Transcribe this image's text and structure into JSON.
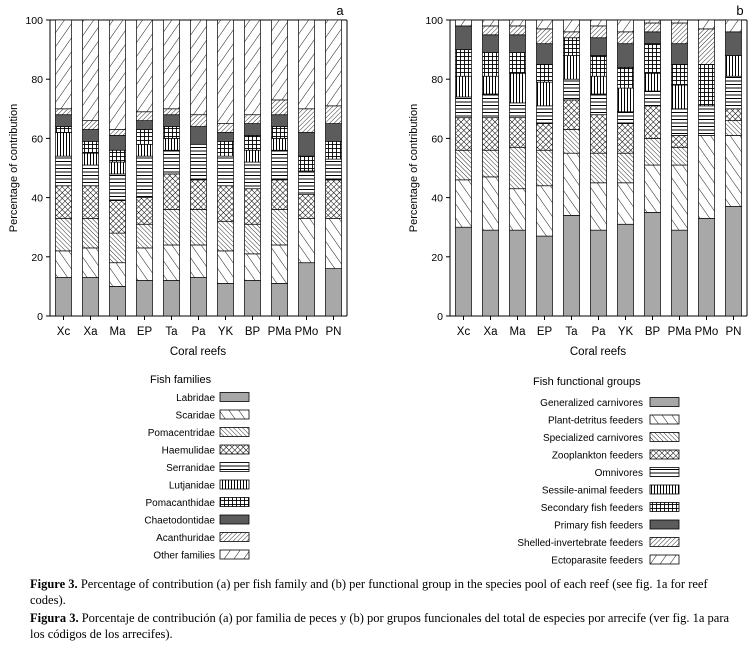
{
  "patterns": [
    {
      "name": "solid-gray",
      "color": "#a8a8a8"
    },
    {
      "name": "sparse-diagonal",
      "color": "#000"
    },
    {
      "name": "dense-diagonal-left",
      "color": "#000"
    },
    {
      "name": "crosshatch",
      "color": "#000"
    },
    {
      "name": "horizontal-lines",
      "color": "#000"
    },
    {
      "name": "vertical-lines",
      "color": "#000"
    },
    {
      "name": "grid",
      "color": "#000"
    },
    {
      "name": "solid-dark",
      "color": "#5c5c5c"
    },
    {
      "name": "dense-diagonal-right",
      "color": "#000"
    },
    {
      "name": "sparse-diagonal-left",
      "color": "#000"
    }
  ],
  "chart_data": [
    {
      "type": "bar",
      "stacked": true,
      "panel_label": "a",
      "title": "",
      "xlabel": "Coral reefs",
      "ylabel": "Percentage of contribution",
      "ylim": [
        0,
        100
      ],
      "yticks": [
        "0",
        "20",
        "40",
        "60",
        "80",
        "100"
      ],
      "categories": [
        "Xc",
        "Xa",
        "Ma",
        "EP",
        "Ta",
        "Pa",
        "YK",
        "BP",
        "PMa",
        "PMo",
        "PN"
      ],
      "legend_title": "Fish families",
      "series": [
        {
          "name": "Labridae",
          "values": [
            13,
            13,
            10,
            12,
            12,
            13,
            11,
            12,
            11,
            18,
            16
          ]
        },
        {
          "name": "Scaridae",
          "values": [
            9,
            10,
            8,
            11,
            12,
            11,
            11,
            9,
            13,
            15,
            17
          ]
        },
        {
          "name": "Pomacentridae",
          "values": [
            11,
            10,
            10,
            8,
            12,
            12,
            10,
            10,
            12,
            0,
            0
          ]
        },
        {
          "name": "Haemulidae",
          "values": [
            11,
            11,
            11,
            9,
            12,
            10,
            12,
            12,
            10,
            8,
            13
          ]
        },
        {
          "name": "Serranidae",
          "values": [
            10,
            7,
            9,
            14,
            8,
            12,
            10,
            9,
            10,
            8,
            7
          ]
        },
        {
          "name": "Lutjanidae",
          "values": [
            8,
            4,
            4,
            4,
            4,
            0,
            0,
            4,
            4,
            0,
            0
          ]
        },
        {
          "name": "Pomacanthidae",
          "values": [
            2,
            4,
            4,
            5,
            4,
            0,
            5,
            5,
            4,
            5,
            6
          ]
        },
        {
          "name": "Chaetodontidae",
          "values": [
            4,
            4,
            5,
            3,
            4,
            6,
            3,
            4,
            4,
            8,
            6
          ]
        },
        {
          "name": "Acanthuridae",
          "values": [
            2,
            3,
            2,
            3,
            2,
            4,
            3,
            3,
            5,
            8,
            6
          ]
        },
        {
          "name": "Other families",
          "values": [
            30,
            34,
            37,
            31,
            30,
            32,
            35,
            32,
            27,
            30,
            29
          ]
        }
      ]
    },
    {
      "type": "bar",
      "stacked": true,
      "panel_label": "b",
      "title": "",
      "xlabel": "Coral reefs",
      "ylabel": "Percentage of contribution",
      "ylim": [
        0,
        100
      ],
      "yticks": [
        "0",
        "20",
        "40",
        "60",
        "80",
        "100"
      ],
      "categories": [
        "Xc",
        "Xa",
        "Ma",
        "EP",
        "Ta",
        "Pa",
        "YK",
        "BP",
        "PMa",
        "PMo",
        "PN"
      ],
      "legend_title": "Fish functional groups",
      "series": [
        {
          "name": "Generalized carnivores",
          "values": [
            30,
            29,
            29,
            27,
            34,
            29,
            31,
            35,
            29,
            33,
            37
          ]
        },
        {
          "name": "Plant-detritus feeders",
          "values": [
            16,
            18,
            14,
            17,
            21,
            16,
            14,
            16,
            22,
            28,
            24
          ]
        },
        {
          "name": "Specialized carnivores",
          "values": [
            10,
            9,
            14,
            12,
            8,
            10,
            10,
            9,
            6,
            0,
            5
          ]
        },
        {
          "name": "Zooplankton feeders",
          "values": [
            11,
            11,
            10,
            9,
            10,
            13,
            10,
            11,
            4,
            0,
            4
          ]
        },
        {
          "name": "Omnivores",
          "values": [
            7,
            8,
            5,
            6,
            7,
            7,
            4,
            5,
            9,
            10,
            11
          ]
        },
        {
          "name": "Sessile-animal feeders",
          "values": [
            7,
            6,
            10,
            8,
            8,
            6,
            8,
            6,
            8,
            0,
            7
          ]
        },
        {
          "name": "Secondary fish feeders",
          "values": [
            9,
            8,
            7,
            6,
            6,
            7,
            7,
            10,
            7,
            14,
            0
          ]
        },
        {
          "name": "Primary fish feeders",
          "values": [
            8,
            6,
            6,
            7,
            0,
            6,
            8,
            4,
            7,
            0,
            8
          ]
        },
        {
          "name": "Shelled-invertebrate feeders",
          "values": [
            0,
            3,
            3,
            5,
            2,
            4,
            4,
            3,
            7,
            12,
            0
          ]
        },
        {
          "name": "Ectoparasite feeders",
          "values": [
            2,
            2,
            2,
            3,
            4,
            2,
            4,
            1,
            1,
            3,
            4
          ]
        }
      ]
    }
  ],
  "caption": {
    "en_label": "Figure 3.",
    "en_text": " Percentage of contribution (a) per fish family and (b) per functional group in the species pool of each reef (see fig. 1a for reef codes).",
    "es_label": "Figura 3.",
    "es_text": " Porcentaje de contribución (a) por familia de peces y (b) por grupos funcionales del total de especies por arrecife (ver fig. 1a para los códigos de los arrecifes)."
  }
}
